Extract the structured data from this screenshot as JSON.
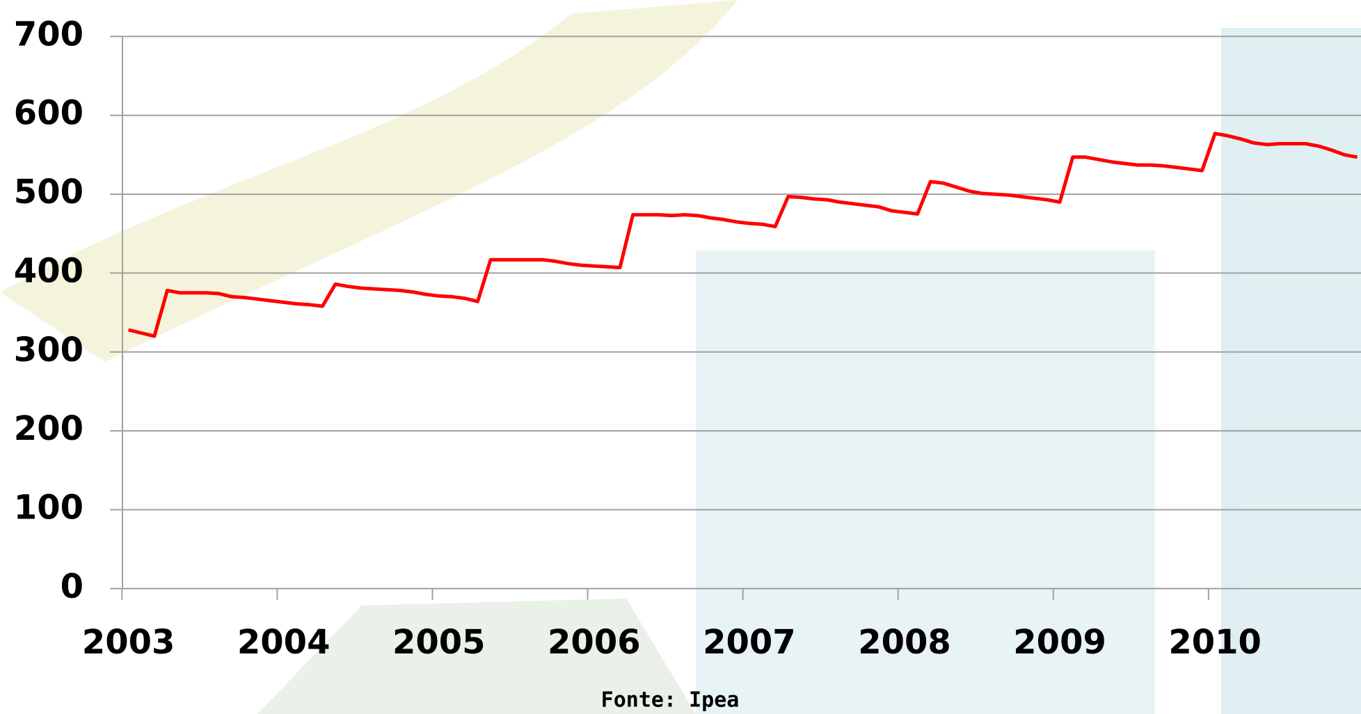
{
  "chart_data": {
    "type": "line",
    "source": "Fonte: Ipea",
    "categories": [
      "2003",
      null,
      null,
      null,
      null,
      null,
      null,
      null,
      null,
      null,
      null,
      null,
      "2004",
      null,
      null,
      null,
      null,
      null,
      null,
      null,
      null,
      null,
      null,
      null,
      "2005",
      null,
      null,
      null,
      null,
      null,
      null,
      null,
      null,
      null,
      null,
      null,
      "2006",
      null,
      null,
      null,
      null,
      null,
      null,
      null,
      null,
      null,
      null,
      null,
      "2007",
      null,
      null,
      null,
      null,
      null,
      null,
      null,
      null,
      null,
      null,
      null,
      "2008",
      null,
      null,
      null,
      null,
      null,
      null,
      null,
      null,
      null,
      null,
      null,
      "2009",
      null,
      null,
      null,
      null,
      null,
      null,
      null,
      null,
      null,
      null,
      null,
      "2010",
      null,
      null,
      null,
      null,
      null,
      null,
      null,
      null,
      null,
      null,
      null
    ],
    "values": [
      328,
      324,
      320,
      378,
      375,
      375,
      375,
      374,
      370,
      369,
      367,
      365,
      363,
      361,
      360,
      358,
      386,
      383,
      381,
      380,
      379,
      378,
      376,
      373,
      371,
      370,
      368,
      364,
      417,
      417,
      417,
      417,
      417,
      415,
      412,
      410,
      409,
      408,
      407,
      474,
      474,
      474,
      473,
      474,
      473,
      470,
      468,
      465,
      463,
      462,
      459,
      497,
      496,
      494,
      493,
      490,
      488,
      486,
      484,
      479,
      477,
      475,
      516,
      514,
      509,
      504,
      501,
      500,
      499,
      497,
      495,
      493,
      490,
      547,
      547,
      544,
      541,
      539,
      537,
      537,
      536,
      534,
      532,
      530,
      577,
      574,
      570,
      565,
      563,
      564,
      564,
      564,
      561,
      556,
      550,
      547
    ],
    "color": "#ff0000",
    "ylim": [
      0,
      700
    ],
    "yticks": [
      0,
      100,
      200,
      300,
      400,
      500,
      600,
      700
    ],
    "grid": true
  }
}
